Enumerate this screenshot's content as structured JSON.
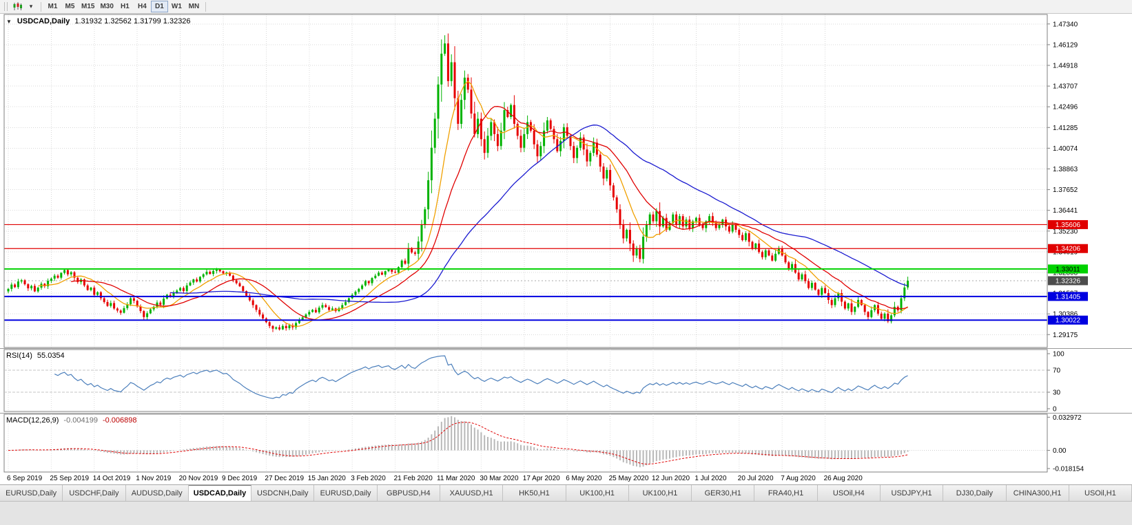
{
  "toolbar": {
    "icons": [
      "candlestick-chart-icon",
      "chart-dropdown-icon"
    ],
    "timeframes": [
      "M1",
      "M5",
      "M15",
      "M30",
      "H1",
      "H4",
      "D1",
      "W1",
      "MN"
    ],
    "active_timeframe": "D1"
  },
  "chart": {
    "title": "USDCAD,Daily",
    "ohlc": "1.31932 1.32562 1.31799 1.32326"
  },
  "price_scale": {
    "labels": [
      "1.47340",
      "1.46129",
      "1.44918",
      "1.43707",
      "1.42496",
      "1.41285",
      "1.40074",
      "1.38863",
      "1.37652",
      "1.36441",
      "1.35230",
      "1.34019",
      "1.32808",
      "1.31597",
      "1.30386",
      "1.29175"
    ]
  },
  "levels": [
    {
      "value": 1.35606,
      "label": "1.35606",
      "color": "#e00000",
      "text_color": "#ffffff",
      "width": 1.2
    },
    {
      "value": 1.34206,
      "label": "1.34206",
      "color": "#e00000",
      "text_color": "#ffffff",
      "width": 1.2
    },
    {
      "value": 1.33011,
      "label": "1.33011",
      "color": "#00d200",
      "text_color": "#000000",
      "width": 2
    },
    {
      "value": 1.31405,
      "label": "1.31405",
      "color": "#0000e0",
      "text_color": "#ffffff",
      "width": 2
    },
    {
      "value": 1.30022,
      "label": "1.30022",
      "color": "#0000e0",
      "text_color": "#ffffff",
      "width": 2
    }
  ],
  "current_price": {
    "value": 1.32326,
    "label": "1.32326",
    "bg": "#4d4d4d",
    "text_color": "#ffffff"
  },
  "rsi": {
    "title": "RSI(14)",
    "value": "55.0354",
    "period": 14,
    "levels": [
      70,
      30
    ],
    "scale_labels": [
      "100",
      "70",
      "30",
      "0"
    ],
    "color": "#4a7ebb"
  },
  "macd": {
    "title": "MACD(12,26,9)",
    "value_main": "-0.004199",
    "value_signal": "-0.006898",
    "fast": 12,
    "slow": 26,
    "signal": 9,
    "scale_labels": [
      "0.032972",
      "0.00",
      "-0.018154"
    ],
    "hist_color": "#b8b8b8",
    "signal_color": "#e00000"
  },
  "tabs": {
    "items": [
      "EURUSD,Daily",
      "USDCHF,Daily",
      "AUDUSD,Daily",
      "USDCAD,Daily",
      "USDCNH,Daily",
      "EURUSD,Daily",
      "GBPUSD,H4",
      "XAUUSD,H1",
      "HK50,H1",
      "UK100,H1",
      "UK100,H1",
      "GER30,H1",
      "FRA40,H1",
      "USOil,H4",
      "USDJPY,H1",
      "DJ30,Daily",
      "CHINA300,H1",
      "USOil,H1"
    ],
    "active_index": 3
  },
  "chart_data": {
    "type": "candlestick",
    "symbol": "USDCAD",
    "timeframe": "Daily",
    "title": "USDCAD,Daily 1.31932 1.32562 1.31799 1.32326",
    "y_range": [
      1.28542,
      1.47775
    ],
    "date_ticks": [
      "6 Sep 2019",
      "25 Sep 2019",
      "14 Oct 2019",
      "1 Nov 2019",
      "20 Nov 2019",
      "9 Dec 2019",
      "27 Dec 2019",
      "15 Jan 2020",
      "3 Feb 2020",
      "21 Feb 2020",
      "11 Mar 2020",
      "30 Mar 2020",
      "17 Apr 2020",
      "6 May 2020",
      "25 May 2020",
      "12 Jun 2020",
      "1 Jul 2020",
      "20 Jul 2020",
      "7 Aug 2020",
      "26 Aug 2020"
    ],
    "candles_per_tick": 13,
    "up_color": "#00b200",
    "down_color": "#e60000",
    "moving_averages": [
      {
        "period": 10,
        "color": "#f0a000"
      },
      {
        "period": 20,
        "color": "#e00000"
      },
      {
        "period": 50,
        "color": "#1a1ad0"
      }
    ],
    "ohlc_current": {
      "open": 1.31932,
      "high": 1.32562,
      "low": 1.31799,
      "close": 1.32326
    },
    "closes": [
      1.3185,
      1.321,
      1.3195,
      1.3228,
      1.3235,
      1.3212,
      1.3188,
      1.3202,
      1.317,
      1.3192,
      1.3215,
      1.32,
      1.3232,
      1.3245,
      1.3262,
      1.325,
      1.3278,
      1.3295,
      1.327,
      1.3282,
      1.325,
      1.3225,
      1.324,
      1.3205,
      1.3178,
      1.3192,
      1.315,
      1.3165,
      1.313,
      1.3108,
      1.3085,
      1.3102,
      1.307,
      1.3058,
      1.3045,
      1.3072,
      1.3095,
      1.313,
      1.3115,
      1.3082,
      1.3055,
      1.302,
      1.3042,
      1.3065,
      1.308,
      1.3105,
      1.3092,
      1.3128,
      1.315,
      1.3138,
      1.3162,
      1.3175,
      1.319,
      1.3172,
      1.3205,
      1.3222,
      1.324,
      1.3228,
      1.3255,
      1.327,
      1.3285,
      1.3272,
      1.329,
      1.33,
      1.3288,
      1.3275,
      1.328,
      1.3262,
      1.3235,
      1.3218,
      1.32,
      1.3172,
      1.3145,
      1.3118,
      1.309,
      1.3062,
      1.3035,
      1.3012,
      1.299,
      1.2968,
      1.2952,
      1.296,
      1.2948,
      1.2968,
      1.2955,
      1.2972,
      1.296,
      1.2985,
      1.3002,
      1.3018,
      1.3035,
      1.305,
      1.3062,
      1.3048,
      1.3075,
      1.309,
      1.3078,
      1.3062,
      1.307,
      1.3055,
      1.3072,
      1.309,
      1.3108,
      1.313,
      1.315,
      1.3168,
      1.3185,
      1.3205,
      1.323,
      1.3218,
      1.3248,
      1.3262,
      1.328,
      1.3268,
      1.3288,
      1.33,
      1.3285,
      1.328,
      1.3312,
      1.335,
      1.3332,
      1.342,
      1.3398,
      1.339,
      1.3462,
      1.356,
      1.365,
      1.382,
      1.401,
      1.418,
      1.438,
      1.456,
      1.462,
      1.44,
      1.451,
      1.43,
      1.415,
      1.429,
      1.442,
      1.435,
      1.421,
      1.409,
      1.418,
      1.406,
      1.398,
      1.408,
      1.416,
      1.409,
      1.402,
      1.411,
      1.423,
      1.419,
      1.426,
      1.415,
      1.408,
      1.401,
      1.409,
      1.416,
      1.411,
      1.403,
      1.396,
      1.402,
      1.411,
      1.417,
      1.412,
      1.406,
      1.399,
      1.405,
      1.413,
      1.408,
      1.402,
      1.395,
      1.401,
      1.407,
      1.4,
      1.393,
      1.398,
      1.404,
      1.397,
      1.39,
      1.383,
      1.388,
      1.379,
      1.372,
      1.365,
      1.356,
      1.348,
      1.353,
      1.345,
      1.338,
      1.342,
      1.336,
      1.349,
      1.356,
      1.362,
      1.358,
      1.364,
      1.355,
      1.36,
      1.353,
      1.357,
      1.362,
      1.356,
      1.361,
      1.355,
      1.359,
      1.354,
      1.358,
      1.36,
      1.356,
      1.354,
      1.358,
      1.361,
      1.357,
      1.354,
      1.356,
      1.359,
      1.355,
      1.352,
      1.356,
      1.353,
      1.35,
      1.347,
      1.351,
      1.346,
      1.342,
      1.345,
      1.34,
      1.337,
      1.341,
      1.338,
      1.335,
      1.339,
      1.342,
      1.338,
      1.334,
      1.33,
      1.333,
      1.328,
      1.324,
      1.327,
      1.323,
      1.319,
      1.322,
      1.318,
      1.315,
      1.319,
      1.316,
      1.312,
      1.309,
      1.313,
      1.316,
      1.311,
      1.307,
      1.31,
      1.305,
      1.308,
      1.312,
      1.309,
      1.305,
      1.302,
      1.306,
      1.309,
      1.304,
      1.301,
      1.304,
      1.2995,
      1.303,
      1.308,
      1.306,
      1.313,
      1.3193,
      1.32326
    ],
    "overrides": {
      "80": {
        "low": 1.2932
      },
      "132": {
        "high": 1.4668
      },
      "266": {
        "low": 1.2985
      },
      "272": {
        "open": 1.31932,
        "high": 1.32562,
        "low": 1.31799,
        "close": 1.32326
      }
    }
  }
}
